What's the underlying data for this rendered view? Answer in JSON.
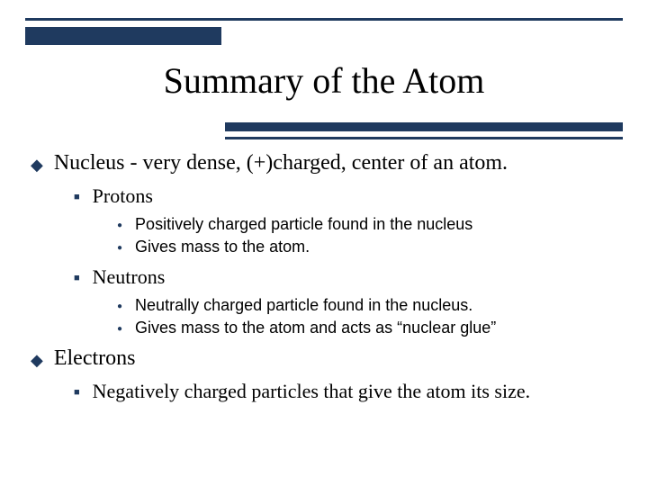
{
  "colors": {
    "accent": "#1f3a5f",
    "background": "#ffffff",
    "text": "#000000"
  },
  "title": "Summary of the Atom",
  "bullets": {
    "nucleus": {
      "text": "Nucleus - very dense, (+)charged, center of an atom.",
      "protons": {
        "label": "Protons",
        "items": [
          "Positively charged particle found in the nucleus",
          "Gives mass to the atom."
        ]
      },
      "neutrons": {
        "label": "Neutrons",
        "items": [
          "Neutrally charged particle found in the nucleus.",
          "Gives mass to the atom and acts as “nuclear glue”"
        ]
      }
    },
    "electrons": {
      "text": "Electrons",
      "detail": "Negatively charged particles that give the atom its size."
    }
  }
}
